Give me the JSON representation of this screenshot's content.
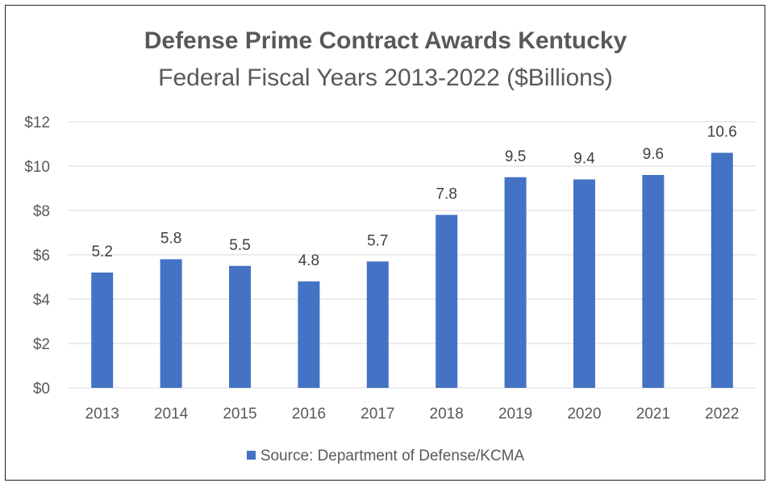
{
  "chart_data": {
    "type": "bar",
    "title": "Defense Prime Contract Awards Kentucky",
    "subtitle": "Federal Fiscal Years 2013-2022 ($Billions)",
    "categories": [
      "2013",
      "2014",
      "2015",
      "2016",
      "2017",
      "2018",
      "2019",
      "2020",
      "2021",
      "2022"
    ],
    "series": [
      {
        "name": "Source: Department of Defense/KCMA",
        "values": [
          5.2,
          5.8,
          5.5,
          4.8,
          5.7,
          7.8,
          9.5,
          9.4,
          9.6,
          10.6
        ]
      }
    ],
    "data_labels": [
      "5.2",
      "5.8",
      "5.5",
      "4.8",
      "5.7",
      "7.8",
      "9.5",
      "9.4",
      "9.6",
      "10.6"
    ],
    "y_ticks": [
      0,
      2,
      4,
      6,
      8,
      10,
      12
    ],
    "y_tick_labels": [
      "$0",
      "$2",
      "$4",
      "$6",
      "$8",
      "$10",
      "$12"
    ],
    "ylim": [
      0,
      12
    ],
    "grid": true,
    "legend": "bottom",
    "bar_color": "#4472C4"
  }
}
